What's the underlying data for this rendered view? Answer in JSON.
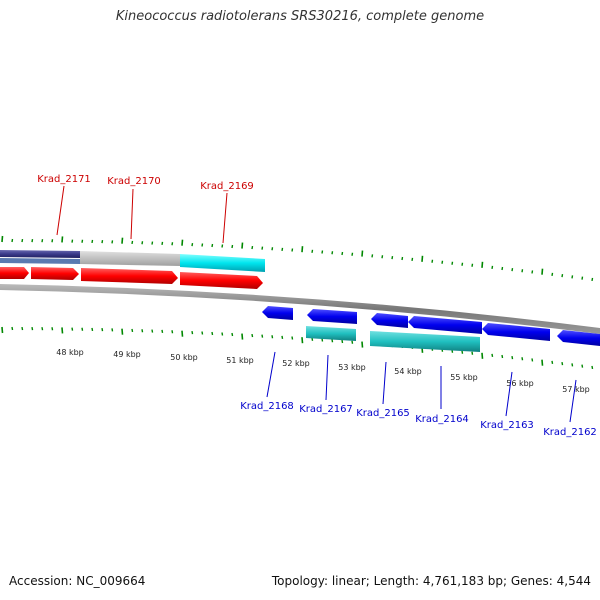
{
  "header": {
    "title": "Kineococcus radiotolerans SRS30216, complete genome"
  },
  "footer": {
    "accession": "Accession: NC_009664",
    "summary": "Topology: linear; Length: 4,761,183 bp; Genes: 4,544"
  },
  "scale": {
    "unit": "kbp",
    "ticks": [
      {
        "label": "48 kbp"
      },
      {
        "label": "49 kbp"
      },
      {
        "label": "50 kbp"
      },
      {
        "label": "51 kbp"
      },
      {
        "label": "52 kbp"
      },
      {
        "label": "53 kbp"
      },
      {
        "label": "54 kbp"
      },
      {
        "label": "55 kbp"
      },
      {
        "label": "56 kbp"
      },
      {
        "label": "57 kbp"
      }
    ]
  },
  "genes": {
    "top_strand": [
      {
        "label": "Krad_2171",
        "color": "#cc0000"
      },
      {
        "label": "Krad_2170",
        "color": "#cc0000"
      },
      {
        "label": "Krad_2169",
        "color": "#cc0000"
      }
    ],
    "bottom_strand": [
      {
        "label": "Krad_2168",
        "color": "#0000cc"
      },
      {
        "label": "Krad_2167",
        "color": "#0000cc"
      },
      {
        "label": "Krad_2165",
        "color": "#0000cc"
      },
      {
        "label": "Krad_2164",
        "color": "#0000cc"
      },
      {
        "label": "Krad_2163",
        "color": "#0000cc"
      },
      {
        "label": "Krad_2162",
        "color": "#0000cc"
      }
    ]
  },
  "colors": {
    "forward_gene": "#ff0000",
    "reverse_gene": "#0000ee",
    "backbone": "#888888",
    "tick": "#008800",
    "cyan_feature": "#00e5ee",
    "teal_feature": "#20c0c0",
    "gray_feature": "#c0c0c0",
    "navy_feature": "#3a3a8a"
  }
}
